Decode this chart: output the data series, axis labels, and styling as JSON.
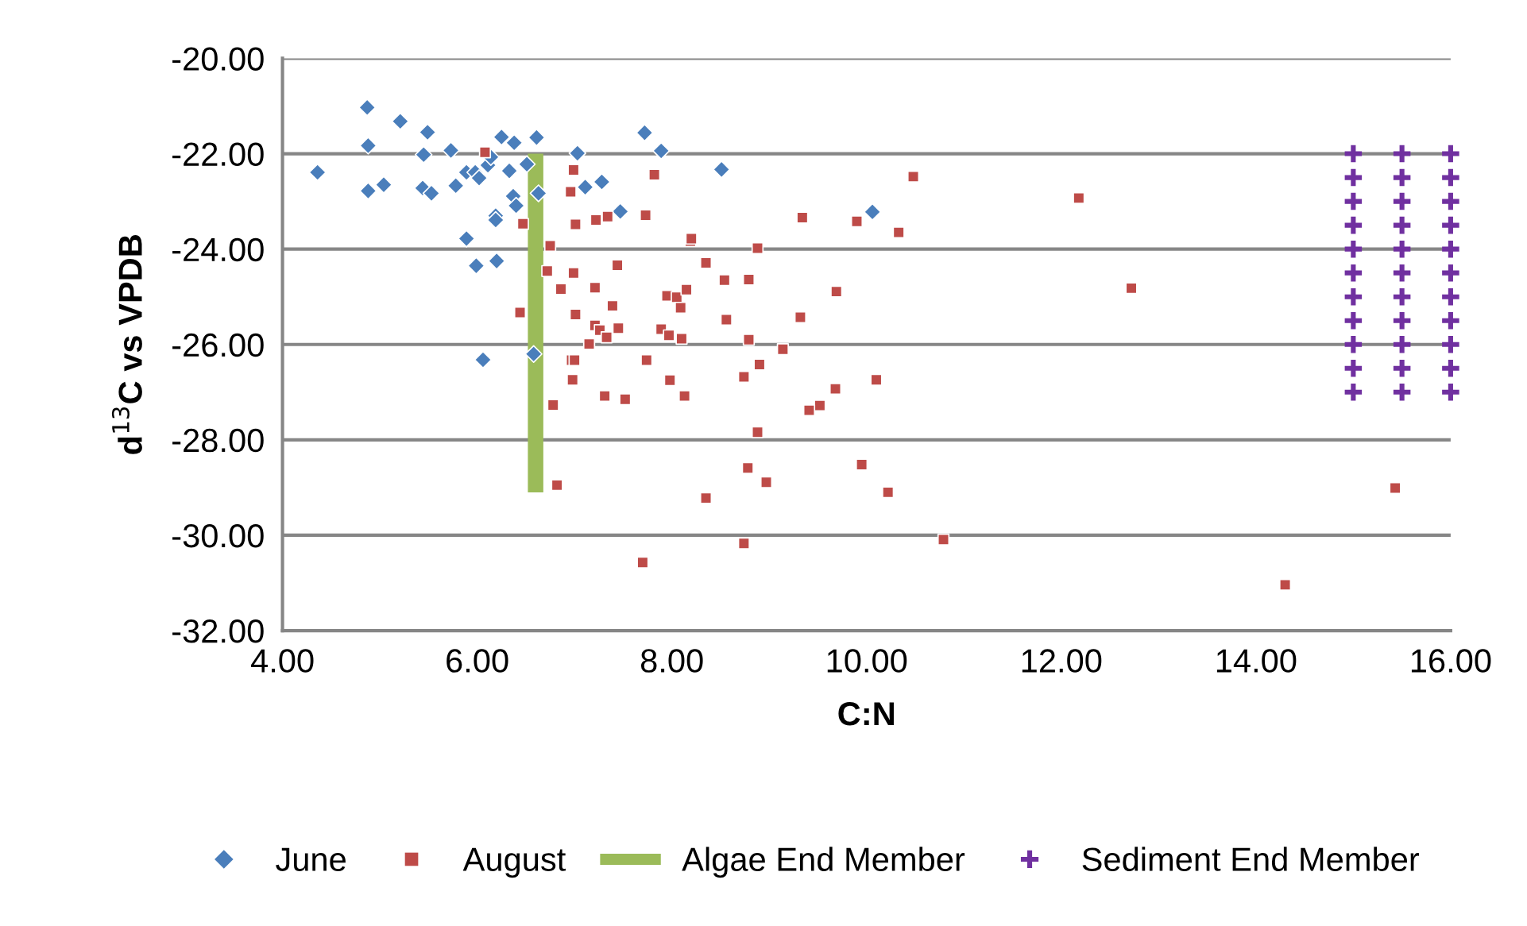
{
  "chart_data": {
    "type": "scatter",
    "xlabel": "C:N",
    "ylabel": "d$^{13}$C vs VPDB",
    "xlim": [
      4,
      16
    ],
    "ylim": [
      -32,
      -20
    ],
    "xticks": [
      {
        "value": 4,
        "label": "4.00"
      },
      {
        "value": 6,
        "label": "6.00"
      },
      {
        "value": 8,
        "label": "8.00"
      },
      {
        "value": 10,
        "label": "10.00"
      },
      {
        "value": 12,
        "label": "12.00"
      },
      {
        "value": 14,
        "label": "14.00"
      },
      {
        "value": 16,
        "label": "16.00"
      }
    ],
    "yticks": [
      {
        "value": -32,
        "label": "-32.00"
      },
      {
        "value": -30,
        "label": "-30.00"
      },
      {
        "value": -28,
        "label": "-28.00"
      },
      {
        "value": -26,
        "label": "-26.00"
      },
      {
        "value": -24,
        "label": "-24.00"
      },
      {
        "value": -22,
        "label": "-22.00"
      },
      {
        "value": -20,
        "label": "-20.00"
      }
    ],
    "grid": "y",
    "legend": "bottom",
    "series": [
      {
        "name": "June",
        "type": "scatter",
        "marker": "diamond",
        "color": "#4a7ebb",
        "x": [
          4.87,
          5.21,
          5.49,
          4.88,
          4.36,
          5.45,
          5.73,
          6.25,
          6.38,
          6.61,
          4.88,
          5.04,
          5.44,
          5.53,
          5.78,
          5.89,
          5.98,
          6.02,
          6.11,
          6.14,
          6.33,
          6.51,
          6.63,
          6.37,
          6.4,
          6.19,
          6.19,
          5.89,
          5.99,
          6.2,
          6.06,
          6.58,
          7.03,
          7.72,
          7.89,
          7.11,
          7.28,
          7.47,
          8.51,
          10.06
        ],
        "values": [
          -21.03,
          -21.32,
          -21.55,
          -21.83,
          -22.39,
          -22.02,
          -21.93,
          -21.65,
          -21.77,
          -21.66,
          -22.78,
          -22.65,
          -22.72,
          -22.83,
          -22.67,
          -22.39,
          -22.39,
          -22.51,
          -22.24,
          -22.07,
          -22.36,
          -22.22,
          -22.83,
          -22.89,
          -23.09,
          -23.3,
          -23.39,
          -23.78,
          -24.35,
          -24.25,
          -26.32,
          -26.2,
          -21.99,
          -21.56,
          -21.94,
          -22.7,
          -22.59,
          -23.21,
          -22.33,
          -23.22
        ]
      },
      {
        "name": "August",
        "type": "scatter",
        "marker": "square",
        "color": "#be4b48",
        "x": [
          6.08,
          6.47,
          6.75,
          6.72,
          6.99,
          6.96,
          7.01,
          7.22,
          7.34,
          7.44,
          6.86,
          6.99,
          7.21,
          6.44,
          7.01,
          7.39,
          7.21,
          7.26,
          7.33,
          7.15,
          7.45,
          6.97,
          7.0,
          6.98,
          7.82,
          7.73,
          8.19,
          8.2,
          8.88,
          9.34,
          9.9,
          10.33,
          10.48,
          8.35,
          8.54,
          8.79,
          9.69,
          7.95,
          8.05,
          8.15,
          8.09,
          8.56,
          9.32,
          7.89,
          7.97,
          8.1,
          8.79,
          9.14,
          8.9,
          7.74,
          7.98,
          8.13,
          8.74,
          7.31,
          7.52,
          6.78,
          9.68,
          10.1,
          9.52,
          9.41,
          8.88,
          6.82,
          8.78,
          8.97,
          8.35,
          9.95,
          10.22,
          7.7,
          8.74,
          10.79,
          12.18,
          12.72,
          15.43,
          14.3
        ],
        "values": [
          -21.97,
          -23.47,
          -23.93,
          -24.46,
          -22.34,
          -22.8,
          -23.48,
          -23.39,
          -23.32,
          -24.34,
          -24.84,
          -24.5,
          -24.81,
          -25.33,
          -25.37,
          -25.19,
          -25.6,
          -25.7,
          -25.85,
          -25.99,
          -25.66,
          -26.33,
          -26.33,
          -26.74,
          -22.44,
          -23.29,
          -23.83,
          -23.78,
          -23.98,
          -23.34,
          -23.42,
          -23.65,
          -22.48,
          -24.29,
          -24.65,
          -24.64,
          -24.89,
          -24.98,
          -25.01,
          -24.85,
          -25.23,
          -25.48,
          -25.43,
          -25.68,
          -25.81,
          -25.88,
          -25.9,
          -26.1,
          -26.42,
          -26.33,
          -26.75,
          -27.08,
          -26.68,
          -27.08,
          -27.15,
          -27.27,
          -26.93,
          -26.74,
          -27.28,
          -27.38,
          -27.84,
          -28.95,
          -28.59,
          -28.89,
          -29.22,
          -28.52,
          -29.1,
          -30.57,
          -30.17,
          -30.09,
          -22.93,
          -24.82,
          -29.01,
          -31.04
        ]
      },
      {
        "name": "Algae End Member",
        "type": "line",
        "marker": "none",
        "color": "#9bbb59",
        "x": [
          6.6,
          6.6
        ],
        "values": [
          -22.0,
          -29.1
        ]
      },
      {
        "name": "Sediment End Member",
        "type": "scatter",
        "marker": "cross",
        "color": "#7030a0",
        "x": [
          15,
          15,
          15,
          15,
          15,
          15,
          15,
          15,
          15,
          15,
          15,
          15.5,
          15.5,
          15.5,
          15.5,
          15.5,
          15.5,
          15.5,
          15.5,
          15.5,
          15.5,
          15.5,
          16,
          16,
          16,
          16,
          16,
          16,
          16,
          16,
          16,
          16,
          16
        ],
        "values": [
          -22,
          -22.5,
          -23,
          -23.5,
          -24,
          -24.5,
          -25,
          -25.5,
          -26,
          -26.5,
          -27,
          -22,
          -22.5,
          -23,
          -23.5,
          -24,
          -24.5,
          -25,
          -25.5,
          -26,
          -26.5,
          -27,
          -22,
          -22.5,
          -23,
          -23.5,
          -24,
          -24.5,
          -25,
          -25.5,
          -26,
          -26.5,
          -27
        ]
      }
    ]
  }
}
